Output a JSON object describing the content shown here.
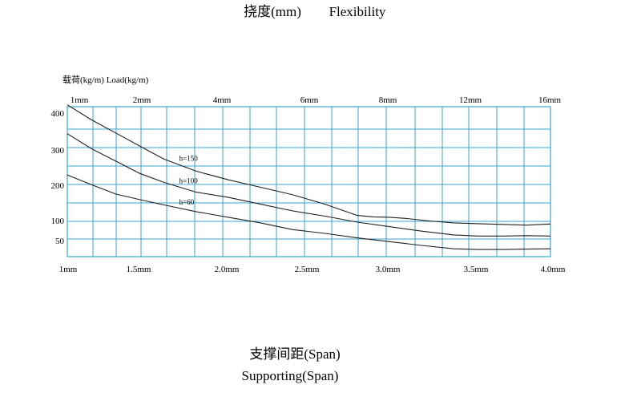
{
  "chart_data": {
    "type": "line",
    "title_cn": "挠度(mm)",
    "title_en": "Flexibility",
    "ylabel": "载荷(kg/m)  Load(kg/m)",
    "xlabel_cn": "支撑间距(Span)",
    "xlabel_en": "Supporting(Span)",
    "top_ticks": [
      "1mm",
      "2mm",
      "4mm",
      "6mm",
      "8mm",
      "12mm",
      "16mm"
    ],
    "x_ticks": [
      "1mm",
      "1.5mm",
      "2.0mm",
      "2.5mm",
      "3.0mm",
      "3.5mm",
      "4.0mm"
    ],
    "y_ticks": [
      {
        "value": 400,
        "label": "400"
      },
      {
        "value": 300,
        "label": "300"
      },
      {
        "value": 200,
        "label": "200"
      },
      {
        "value": 100,
        "label": "100"
      },
      {
        "value": 50,
        "label": "50"
      }
    ],
    "xlim": [
      1.0,
      4.0
    ],
    "ylim": [
      0,
      400
    ],
    "grid": true,
    "grid_color": "#3aa6cf",
    "line_color": "#231f20",
    "series": [
      {
        "name": "h=150",
        "x": [
          1.0,
          1.15,
          1.3,
          1.45,
          1.6,
          1.8,
          2.0,
          2.2,
          2.4,
          2.6,
          2.8,
          2.9,
          3.0,
          3.1,
          3.25,
          3.4,
          3.55,
          3.7,
          3.85,
          4.0
        ],
        "y": [
          405,
          365,
          330,
          295,
          260,
          228,
          205,
          185,
          165,
          140,
          110,
          106,
          105,
          102,
          95,
          90,
          88,
          86,
          84,
          87
        ]
      },
      {
        "name": "h=100",
        "x": [
          1.0,
          1.15,
          1.3,
          1.45,
          1.6,
          1.8,
          2.0,
          2.2,
          2.4,
          2.6,
          2.8,
          3.0,
          3.2,
          3.4,
          3.55,
          3.7,
          3.85,
          4.0
        ],
        "y": [
          328,
          288,
          255,
          222,
          198,
          172,
          158,
          140,
          122,
          108,
          92,
          80,
          68,
          58,
          55,
          55,
          56,
          55
        ]
      },
      {
        "name": "h=60",
        "x": [
          1.0,
          1.15,
          1.3,
          1.45,
          1.6,
          1.8,
          2.0,
          2.2,
          2.4,
          2.6,
          2.8,
          3.0,
          3.2,
          3.4,
          3.55,
          3.7,
          3.85,
          4.0
        ],
        "y": [
          218,
          192,
          167,
          152,
          138,
          120,
          105,
          90,
          72,
          62,
          50,
          40,
          30,
          21,
          19,
          19,
          20,
          21
        ]
      }
    ]
  }
}
